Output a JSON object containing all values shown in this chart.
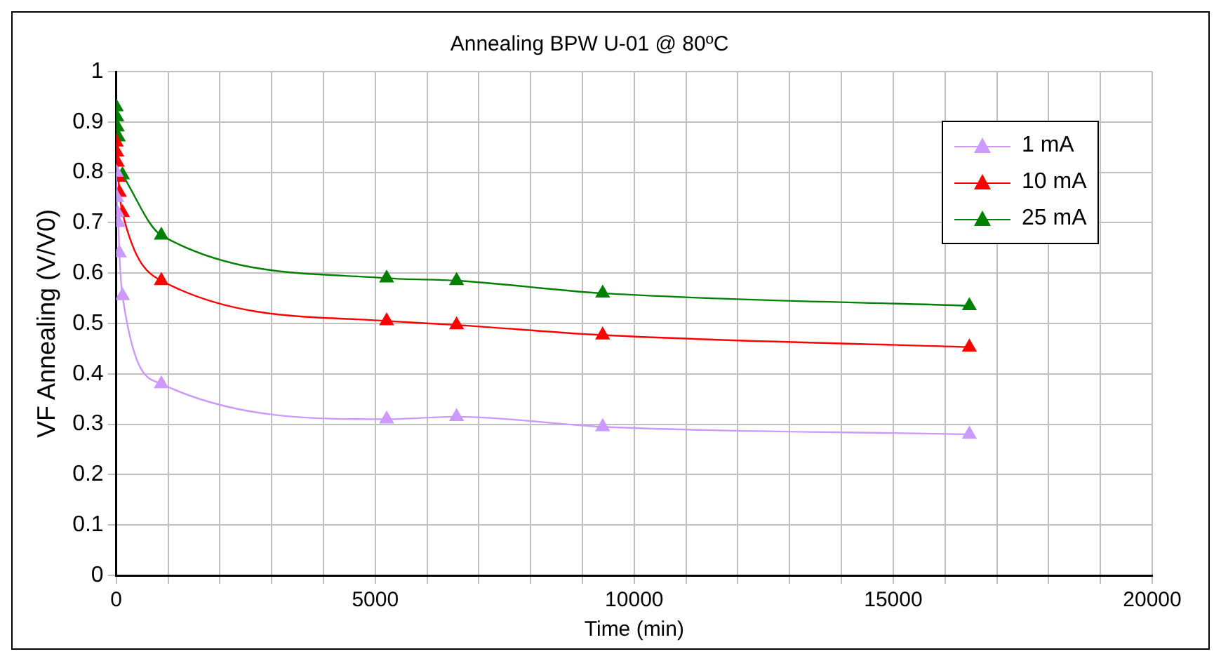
{
  "chart_data": {
    "type": "line",
    "title": "Annealing BPW U-01 @ 80ºC",
    "xlabel": "Time (min)",
    "ylabel": "VF Annealing (V/V0)",
    "x": [
      0,
      10,
      20,
      40,
      60,
      120,
      870,
      5220,
      6570,
      9390,
      16470
    ],
    "series": [
      {
        "name": "1 mA",
        "color": "#cc99ff",
        "values": [
          0.8,
          0.75,
          0.72,
          0.7,
          0.64,
          0.555,
          0.38,
          0.31,
          0.315,
          0.295,
          0.28
        ]
      },
      {
        "name": "10 mA",
        "color": "#ff0000",
        "values": [
          0.86,
          0.84,
          0.82,
          0.79,
          0.76,
          0.72,
          0.585,
          0.505,
          0.497,
          0.477,
          0.453
        ]
      },
      {
        "name": "25 mA",
        "color": "#008000",
        "values": [
          0.93,
          0.91,
          0.89,
          0.87,
          null,
          0.795,
          0.675,
          0.59,
          0.585,
          0.56,
          0.535
        ]
      }
    ],
    "xlim": [
      0,
      20000
    ],
    "xticks": [
      0,
      {
        "value": 1000,
        "label": null
      },
      {
        "value": 2000,
        "label": null
      },
      {
        "value": 3000,
        "label": null
      },
      {
        "value": 4000,
        "label": null
      },
      5000,
      {
        "value": 6000,
        "label": null
      },
      {
        "value": 7000,
        "label": null
      },
      {
        "value": 8000,
        "label": null
      },
      {
        "value": 9000,
        "label": null
      },
      10000,
      {
        "value": 11000,
        "label": null
      },
      {
        "value": 12000,
        "label": null
      },
      {
        "value": 13000,
        "label": null
      },
      {
        "value": 14000,
        "label": null
      },
      15000,
      {
        "value": 16000,
        "label": null
      },
      {
        "value": 17000,
        "label": null
      },
      {
        "value": 18000,
        "label": null
      },
      {
        "value": 19000,
        "label": null
      },
      20000
    ],
    "ylim": [
      0,
      1
    ],
    "yticks": [
      0,
      0.1,
      0.2,
      0.3,
      0.4,
      0.5,
      0.6,
      0.7,
      0.8,
      0.9,
      1
    ],
    "grid": true,
    "legend": "top right",
    "marker": "triangle",
    "line_style": "solid"
  }
}
